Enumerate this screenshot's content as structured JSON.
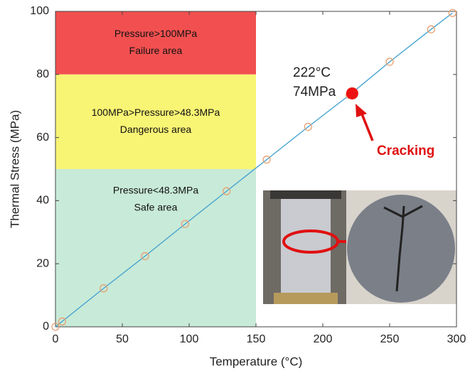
{
  "chart_data": {
    "type": "line",
    "x_label": "Temperature (°C)",
    "y_label": "Thermal Stress (MPa)",
    "x": [
      0,
      5,
      36,
      67,
      97,
      128,
      158,
      189,
      220,
      250,
      281,
      297
    ],
    "series": [
      {
        "color": "#3fa0cf",
        "marker_color": "#e8a070",
        "values": [
          0,
          1.7,
          12.2,
          22.4,
          32.6,
          43,
          53,
          63.4,
          73.5,
          84,
          94.3,
          99.5
        ]
      }
    ],
    "highlight": {
      "x": 222,
      "y": 74,
      "color": "#ee1111"
    },
    "regions": [
      {
        "lines": [
          "Pressure>100MPa",
          "Failure area"
        ],
        "xlim": [
          0,
          150
        ],
        "ylim": [
          80,
          100
        ],
        "color": "#f25050"
      },
      {
        "lines": [
          "100MPa>Pressure>48.3MPa",
          "Dangerous area"
        ],
        "xlim": [
          0,
          150
        ],
        "ylim": [
          50,
          80
        ],
        "color": "#f8f474"
      },
      {
        "lines": [
          "Pressure<48.3MPa",
          "Safe area"
        ],
        "xlim": [
          0,
          150
        ],
        "ylim": [
          0,
          50
        ],
        "color": "#c8ead8"
      }
    ],
    "annotations": [
      "222°C",
      "74MPa",
      "Cracking"
    ],
    "xlim": [
      0,
      300
    ],
    "xticks": [
      0,
      50,
      100,
      150,
      200,
      250,
      300
    ],
    "ylim": [
      0,
      100
    ],
    "yticks": [
      0,
      20,
      40,
      60,
      80,
      100
    ]
  }
}
